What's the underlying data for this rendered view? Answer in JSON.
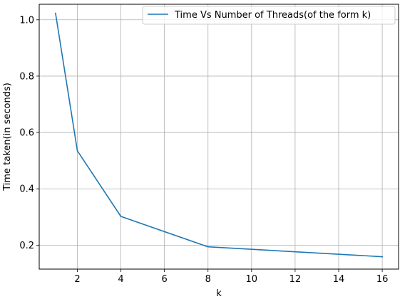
{
  "chart_data": {
    "type": "line",
    "xlabel": "k",
    "ylabel": "Time taken(in seconds)",
    "xlim": [
      0.25,
      16.75
    ],
    "ylim": [
      0.115,
      1.055
    ],
    "xticks": [
      2,
      4,
      6,
      8,
      10,
      12,
      14,
      16
    ],
    "yticks": [
      0.2,
      0.4,
      0.6,
      0.8,
      1.0
    ],
    "grid": true,
    "legend_position": "top-right",
    "series": [
      {
        "name": "Time Vs Number of Threads(of the form k)",
        "color": "#1f77b4",
        "x": [
          1,
          2,
          4,
          8,
          16
        ],
        "y": [
          1.023,
          0.535,
          0.302,
          0.194,
          0.159
        ]
      }
    ]
  }
}
